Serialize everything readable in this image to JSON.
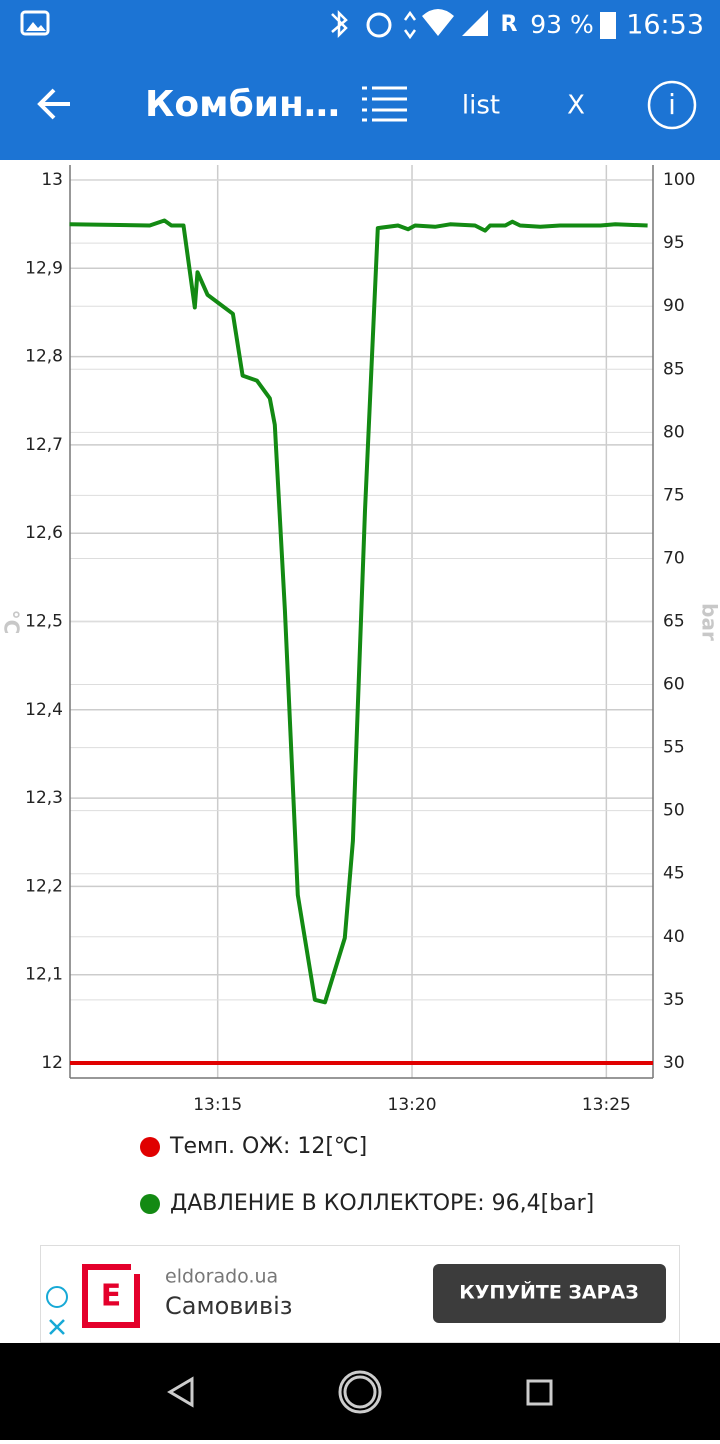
{
  "status_bar": {
    "roaming": "R",
    "battery": "93 %",
    "time": "16:53"
  },
  "app_bar": {
    "title": "Комбин…",
    "list_button": "list",
    "close_button": "X",
    "info_button": "i"
  },
  "chart_data": {
    "type": "line",
    "y_label": "°C",
    "y2_label": "bar",
    "xlim": [
      791.2,
      806.2
    ],
    "xticks": [
      {
        "value": 795,
        "label": "13:15"
      },
      {
        "value": 800,
        "label": "13:20"
      },
      {
        "value": 805,
        "label": "13:25"
      }
    ],
    "ylim": [
      11.983,
      13.017
    ],
    "yticks": [
      12,
      {
        "value": 12.1,
        "label": "12,1"
      },
      {
        "value": 12.2,
        "label": "12,2"
      },
      {
        "value": 12.3,
        "label": "12,3"
      },
      {
        "value": 12.4,
        "label": "12,4"
      },
      {
        "value": 12.5,
        "label": "12,5"
      },
      {
        "value": 12.6,
        "label": "12,6"
      },
      {
        "value": 12.7,
        "label": "12,7"
      },
      {
        "value": 12.8,
        "label": "12,8"
      },
      {
        "value": 12.9,
        "label": "12,9"
      },
      13
    ],
    "y2lim": [
      28.8,
      101.2
    ],
    "y2ticks": [
      30,
      35,
      40,
      45,
      50,
      55,
      60,
      65,
      70,
      75,
      80,
      85,
      90,
      95,
      100
    ],
    "grid": true,
    "series": [
      {
        "name": "Темп. ОЖ: 12[℃]",
        "color": "#e00000",
        "x": [
          791.2,
          806.2
        ],
        "values": [
          12,
          12
        ]
      },
      {
        "name": "ДАВЛЕНИЕ В КОЛЛЕКТОРЕ: 96,4[bar]",
        "color": "#138a13",
        "axis": "y2",
        "x": [
          791.19,
          793.25,
          793.63,
          793.81,
          794.12,
          794.41,
          794.48,
          794.74,
          795.39,
          795.64,
          796.01,
          796.34,
          796.47,
          796.73,
          797.06,
          797.5,
          797.76,
          798.27,
          798.48,
          798.79,
          799.12,
          799.64,
          799.9,
          800.08,
          800.59,
          800.98,
          801.62,
          801.88,
          802.01,
          802.4,
          802.58,
          802.78,
          803.3,
          803.81,
          804.85,
          805.23,
          806.06
        ],
        "values": [
          96.5,
          96.4,
          96.8,
          96.4,
          96.4,
          89.9,
          92.7,
          90.9,
          89.4,
          84.5,
          84.1,
          82.7,
          80.6,
          65.9,
          43.3,
          35.0,
          34.8,
          39.9,
          47.6,
          73.8,
          96.2,
          96.4,
          96.1,
          96.4,
          96.3,
          96.5,
          96.4,
          96.0,
          96.4,
          96.4,
          96.7,
          96.4,
          96.3,
          96.4,
          96.4,
          96.5,
          96.4
        ]
      }
    ]
  },
  "ad": {
    "logo": "E",
    "domain": "eldorado.ua",
    "headline": "Самовивіз",
    "button": "КУПУЙТЕ ЗАРАЗ"
  }
}
